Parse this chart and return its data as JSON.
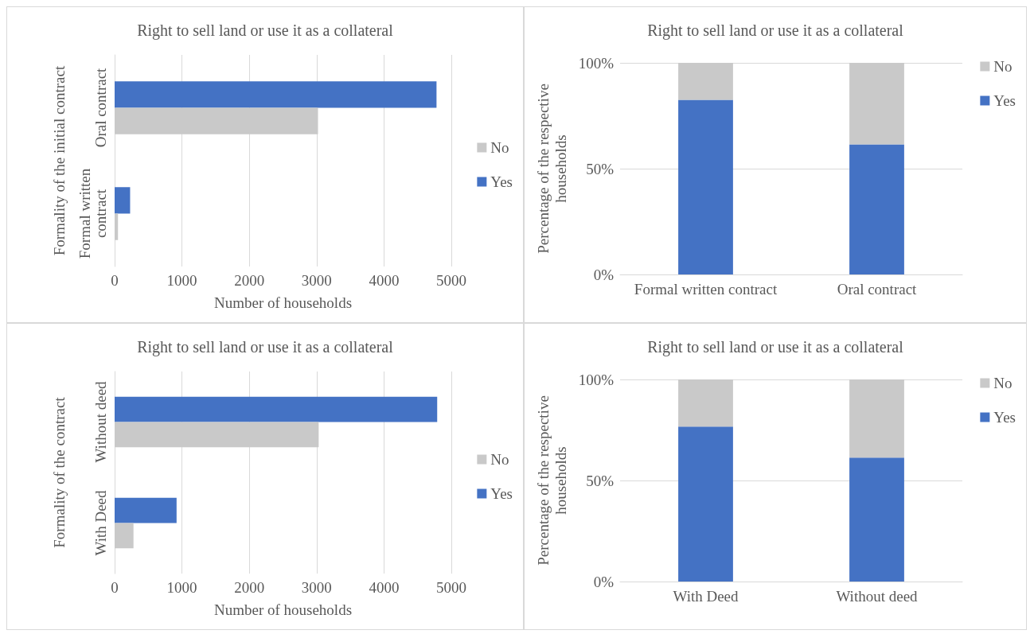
{
  "chart_data": [
    {
      "type": "bar",
      "orientation": "horizontal",
      "title": "Right to sell land or use it as a collateral",
      "xlabel": "Number of households",
      "ylabel": "Formality of the initial contract",
      "categories": [
        "Oral contract",
        "Formal written contract"
      ],
      "series": [
        {
          "name": "No",
          "color": "#c9c9c9",
          "values": [
            3020,
            50
          ]
        },
        {
          "name": "Yes",
          "color": "#4472c4",
          "values": [
            4780,
            230
          ]
        }
      ],
      "xlim": [
        0,
        5000
      ],
      "xticks": [
        0,
        1000,
        2000,
        3000,
        4000,
        5000
      ],
      "grid": "x",
      "legend": "right"
    },
    {
      "type": "bar",
      "stacked": true,
      "title": "Right to sell land or use it as a collateral",
      "ylabel": "Percentage of the respective households",
      "categories": [
        "Formal written contract",
        "Oral contract"
      ],
      "series": [
        {
          "name": "Yes",
          "color": "#4472c4",
          "values": [
            82.5,
            61.5
          ]
        },
        {
          "name": "No",
          "color": "#c9c9c9",
          "values": [
            17.5,
            38.5
          ]
        }
      ],
      "ylim": [
        0,
        100
      ],
      "yticks": [
        {
          "value": 0,
          "label": "0%"
        },
        {
          "value": 50,
          "label": "50%"
        },
        {
          "value": 100,
          "label": "100%"
        }
      ],
      "grid": "y",
      "legend": "right"
    },
    {
      "type": "bar",
      "orientation": "horizontal",
      "title": "Right to sell land or use it as a collateral",
      "xlabel": "Number of households",
      "ylabel": "Formality of the contract",
      "categories": [
        "Without deed",
        "With Deed"
      ],
      "series": [
        {
          "name": "No",
          "color": "#c9c9c9",
          "values": [
            3030,
            280
          ]
        },
        {
          "name": "Yes",
          "color": "#4472c4",
          "values": [
            4790,
            920
          ]
        }
      ],
      "xlim": [
        0,
        5000
      ],
      "xticks": [
        0,
        1000,
        2000,
        3000,
        4000,
        5000
      ],
      "grid": "x",
      "legend": "right"
    },
    {
      "type": "bar",
      "stacked": true,
      "title": "Right to sell land or use it as a collateral",
      "ylabel": "Percentage of the respective households",
      "categories": [
        "With Deed",
        "Without deed"
      ],
      "series": [
        {
          "name": "Yes",
          "color": "#4472c4",
          "values": [
            76.7,
            61.3
          ]
        },
        {
          "name": "No",
          "color": "#c9c9c9",
          "values": [
            23.3,
            38.7
          ]
        }
      ],
      "ylim": [
        0,
        100
      ],
      "yticks": [
        {
          "value": 0,
          "label": "0%"
        },
        {
          "value": 50,
          "label": "50%"
        },
        {
          "value": 100,
          "label": "100%"
        }
      ],
      "grid": "y",
      "legend": "right"
    }
  ]
}
